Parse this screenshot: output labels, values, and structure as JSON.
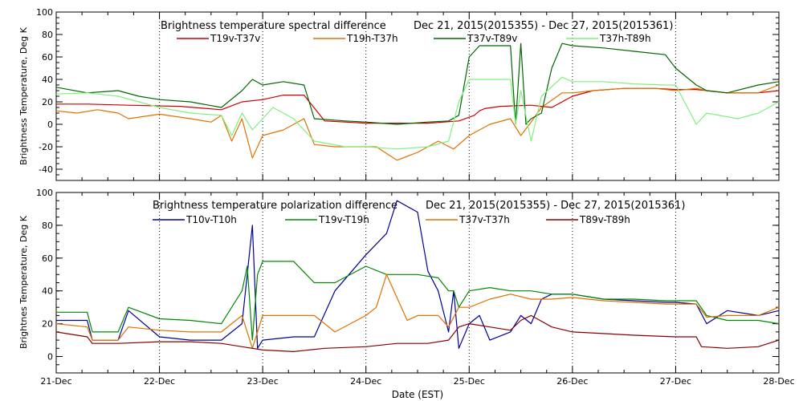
{
  "chart_data": [
    {
      "type": "line",
      "title": "Brightness temperature spectral difference",
      "date_range": "Dec 21, 2015(2015355) - Dec 27, 2015(2015361)",
      "xlabel": "",
      "ylabel": "Brightness Temperature, Deg K",
      "ylim": [
        -50,
        100
      ],
      "yticks": [
        -40,
        -20,
        0,
        20,
        40,
        60,
        80,
        100
      ],
      "xlim": [
        21,
        28
      ],
      "grid": "vertical dotted at day boundaries",
      "legend_placement": "top",
      "series": [
        {
          "name": "T19v-T37v",
          "color": "#cc0000",
          "x": [
            21.0,
            21.3,
            21.7,
            22.2,
            22.6,
            22.8,
            23.0,
            23.2,
            23.4,
            23.6,
            23.8,
            24.0,
            24.3,
            24.6,
            24.9,
            25.05,
            25.1,
            25.15,
            25.3,
            25.6,
            25.8,
            26.0,
            26.2,
            26.5,
            26.8,
            27.0,
            27.2,
            27.3,
            27.5,
            27.8,
            28.0
          ],
          "values": [
            18,
            18,
            17,
            16,
            13,
            20,
            22,
            26,
            26,
            3,
            2,
            1,
            1,
            1,
            3,
            8,
            12,
            14,
            16,
            17,
            15,
            25,
            30,
            32,
            32,
            31,
            31,
            30,
            28,
            28,
            30
          ]
        },
        {
          "name": "T19h-T37h",
          "color": "#e07000",
          "x": [
            21.0,
            21.2,
            21.4,
            21.6,
            21.7,
            22.0,
            22.3,
            22.5,
            22.6,
            22.7,
            22.8,
            22.9,
            23.0,
            23.2,
            23.4,
            23.5,
            23.7,
            24.0,
            24.1,
            24.3,
            24.5,
            24.7,
            24.85,
            25.0,
            25.1,
            25.2,
            25.4,
            25.5,
            25.6,
            25.7,
            25.9,
            26.0,
            26.2,
            26.5,
            26.8,
            27.0,
            27.2,
            27.3,
            27.5,
            27.8,
            28.0
          ],
          "values": [
            12,
            10,
            13,
            10,
            5,
            9,
            5,
            2,
            8,
            -15,
            5,
            -30,
            -10,
            -5,
            5,
            -18,
            -20,
            -20,
            -20,
            -32,
            -25,
            -15,
            -22,
            -10,
            -5,
            0,
            5,
            -10,
            2,
            15,
            28,
            28,
            30,
            32,
            32,
            30,
            32,
            30,
            28,
            28,
            35
          ]
        },
        {
          "name": "T37v-T89v",
          "color": "#006600",
          "x": [
            21.0,
            21.3,
            21.6,
            21.8,
            22.0,
            22.3,
            22.6,
            22.8,
            22.9,
            23.0,
            23.2,
            23.4,
            23.5,
            23.8,
            24.0,
            24.3,
            24.6,
            24.8,
            24.9,
            25.0,
            25.1,
            25.3,
            25.4,
            25.45,
            25.5,
            25.55,
            25.6,
            25.7,
            25.8,
            25.9,
            26.0,
            26.3,
            26.6,
            26.9,
            27.0,
            27.2,
            27.3,
            27.5,
            27.8,
            28.0
          ],
          "values": [
            33,
            28,
            30,
            25,
            22,
            20,
            15,
            30,
            40,
            35,
            38,
            35,
            5,
            3,
            2,
            0,
            2,
            3,
            8,
            60,
            70,
            70,
            70,
            0,
            72,
            0,
            5,
            10,
            50,
            72,
            70,
            68,
            65,
            62,
            50,
            35,
            30,
            28,
            35,
            38
          ]
        },
        {
          "name": "T37h-T89h",
          "color": "#80f080",
          "x": [
            21.0,
            21.3,
            21.6,
            21.8,
            22.0,
            22.3,
            22.6,
            22.7,
            22.8,
            22.9,
            23.0,
            23.1,
            23.3,
            23.5,
            23.8,
            24.0,
            24.3,
            24.6,
            24.8,
            24.9,
            25.0,
            25.2,
            25.4,
            25.45,
            25.5,
            25.6,
            25.7,
            25.9,
            26.0,
            26.3,
            26.6,
            26.9,
            27.0,
            27.2,
            27.3,
            27.6,
            27.8,
            28.0
          ],
          "values": [
            27,
            28,
            25,
            20,
            15,
            10,
            8,
            -10,
            10,
            -5,
            5,
            15,
            5,
            -15,
            -20,
            -20,
            -22,
            -20,
            -15,
            20,
            40,
            40,
            40,
            0,
            30,
            -15,
            25,
            42,
            38,
            38,
            36,
            35,
            35,
            0,
            10,
            5,
            10,
            20
          ]
        }
      ]
    },
    {
      "type": "line",
      "title": "Brightness temperature polarization difference",
      "date_range": "Dec 21, 2015(2015355) - Dec 27, 2015(2015361)",
      "xlabel": "Date (EST)",
      "ylabel": "Brightnes Temperature, Deg K",
      "ylim": [
        -10,
        100
      ],
      "yticks": [
        0,
        20,
        40,
        60,
        80,
        100
      ],
      "xlim": [
        21,
        28
      ],
      "xticks": [
        "21-Dec",
        "22-Dec",
        "23-Dec",
        "24-Dec",
        "25-Dec",
        "26-Dec",
        "27-Dec",
        "28-Dec"
      ],
      "grid": "vertical dotted at day boundaries",
      "legend_placement": "top",
      "series": [
        {
          "name": "T10v-T10h",
          "color": "#000099",
          "x": [
            21.0,
            21.3,
            21.35,
            21.6,
            21.7,
            22.0,
            22.3,
            22.6,
            22.8,
            22.85,
            22.9,
            22.95,
            23.0,
            23.3,
            23.5,
            23.7,
            24.0,
            24.2,
            24.3,
            24.5,
            24.6,
            24.7,
            24.8,
            24.85,
            24.9,
            25.0,
            25.1,
            25.2,
            25.4,
            25.5,
            25.6,
            25.7,
            25.8,
            26.0,
            26.3,
            26.6,
            26.9,
            27.0,
            27.2,
            27.3,
            27.5,
            27.8,
            28.0
          ],
          "values": [
            22,
            22,
            10,
            10,
            28,
            12,
            10,
            10,
            20,
            50,
            80,
            5,
            10,
            12,
            12,
            40,
            62,
            75,
            95,
            88,
            52,
            40,
            15,
            40,
            5,
            20,
            25,
            10,
            15,
            25,
            20,
            35,
            38,
            38,
            35,
            34,
            33,
            33,
            32,
            20,
            28,
            25,
            28
          ]
        },
        {
          "name": "T19v-T19h",
          "color": "#008800",
          "x": [
            21.0,
            21.3,
            21.35,
            21.6,
            21.7,
            22.0,
            22.3,
            22.6,
            22.8,
            22.85,
            22.9,
            22.95,
            23.0,
            23.3,
            23.5,
            23.7,
            24.0,
            24.2,
            24.5,
            24.7,
            24.8,
            24.85,
            24.9,
            25.0,
            25.2,
            25.4,
            25.6,
            25.8,
            26.0,
            26.3,
            26.6,
            26.9,
            27.0,
            27.2,
            27.3,
            27.5,
            27.8,
            28.0
          ],
          "values": [
            27,
            27,
            15,
            15,
            30,
            23,
            22,
            20,
            40,
            55,
            10,
            50,
            58,
            58,
            45,
            45,
            55,
            50,
            50,
            48,
            40,
            40,
            30,
            40,
            42,
            40,
            40,
            38,
            38,
            35,
            35,
            34,
            34,
            34,
            25,
            22,
            22,
            20
          ]
        },
        {
          "name": "T37v-T37h",
          "color": "#e07000",
          "x": [
            21.0,
            21.3,
            21.35,
            21.6,
            21.7,
            22.0,
            22.3,
            22.6,
            22.8,
            22.9,
            23.0,
            23.3,
            23.5,
            23.7,
            24.0,
            24.1,
            24.2,
            24.4,
            24.5,
            24.7,
            24.8,
            24.9,
            25.0,
            25.2,
            25.4,
            25.6,
            25.8,
            26.0,
            26.3,
            26.6,
            26.9,
            27.0,
            27.2,
            27.3,
            27.5,
            27.8,
            28.0
          ],
          "values": [
            20,
            18,
            10,
            10,
            18,
            16,
            15,
            15,
            25,
            5,
            25,
            25,
            25,
            15,
            25,
            30,
            50,
            22,
            25,
            25,
            18,
            30,
            30,
            35,
            38,
            35,
            35,
            36,
            34,
            33,
            32,
            32,
            32,
            24,
            25,
            25,
            30
          ]
        },
        {
          "name": "T89v-T89h",
          "color": "#880000",
          "x": [
            21.0,
            21.3,
            21.35,
            21.6,
            22.0,
            22.3,
            22.6,
            22.8,
            23.0,
            23.3,
            23.6,
            24.0,
            24.3,
            24.6,
            24.8,
            24.9,
            25.0,
            25.2,
            25.4,
            25.5,
            25.6,
            25.8,
            26.0,
            26.3,
            26.6,
            27.0,
            27.2,
            27.25,
            27.5,
            27.8,
            28.0
          ],
          "values": [
            15,
            12,
            8,
            8,
            9,
            9,
            8,
            6,
            4,
            3,
            5,
            6,
            8,
            8,
            10,
            18,
            20,
            18,
            16,
            22,
            25,
            18,
            15,
            14,
            13,
            12,
            12,
            6,
            5,
            6,
            10
          ]
        }
      ]
    }
  ]
}
